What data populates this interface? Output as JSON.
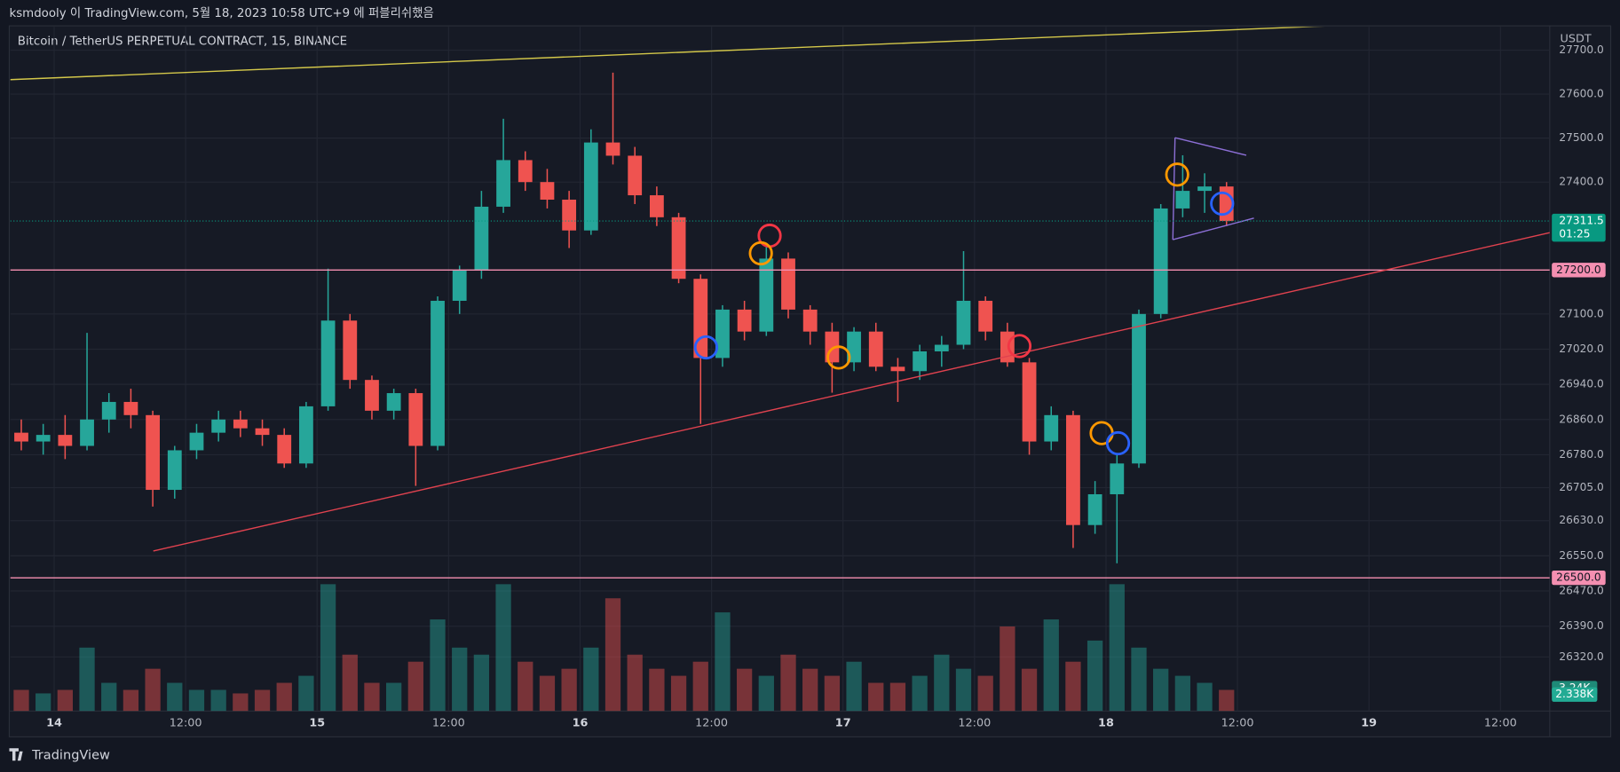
{
  "header": {
    "text": "ksmdooly 이 TradingView.com, 5월 18, 2023 10:58 UTC+9 에 퍼블리쉬했음"
  },
  "footer": {
    "brand": "TradingView"
  },
  "chart_data": {
    "type": "candlestick",
    "title": "Bitcoin / TetherUS PERPETUAL CONTRACT, 15, BINANCE",
    "currency": "USDT",
    "up_color": "#26a69a",
    "down_color": "#ef5350",
    "grid": true,
    "xlim": [
      -4,
      136.5
    ],
    "xticks": [
      {
        "value": 0,
        "label": "14"
      },
      {
        "value": 12,
        "label": "12:00"
      },
      {
        "value": 24,
        "label": "15"
      },
      {
        "value": 36,
        "label": "12:00"
      },
      {
        "value": 48,
        "label": "16"
      },
      {
        "value": 60,
        "label": "12:00"
      },
      {
        "value": 72,
        "label": "17"
      },
      {
        "value": 84,
        "label": "12:00"
      },
      {
        "value": 96,
        "label": "18"
      },
      {
        "value": 108,
        "label": "12:00"
      },
      {
        "value": 120,
        "label": "19"
      },
      {
        "value": 132,
        "label": "12:00"
      }
    ],
    "ylim": [
      26197,
      27753
    ],
    "yticks": [
      {
        "value": 27700,
        "label": "27700.0"
      },
      {
        "value": 27600,
        "label": "27600.0"
      },
      {
        "value": 27500,
        "label": "27500.0"
      },
      {
        "value": 27400,
        "label": "27400.0"
      },
      {
        "value": 27100,
        "label": "27100.0"
      },
      {
        "value": 27020,
        "label": "27020.0"
      },
      {
        "value": 26940,
        "label": "26940.0"
      },
      {
        "value": 26860,
        "label": "26860.0"
      },
      {
        "value": 26780,
        "label": "26780.0"
      },
      {
        "value": 26705,
        "label": "26705.0"
      },
      {
        "value": 26630,
        "label": "26630.0"
      },
      {
        "value": 26550,
        "label": "26550.0"
      },
      {
        "value": 26470,
        "label": "26470.0"
      },
      {
        "value": 26390,
        "label": "26390.0"
      },
      {
        "value": 26320,
        "label": "26320.0"
      }
    ],
    "x": [
      -4,
      -2,
      0,
      2,
      4,
      6,
      8,
      10,
      12,
      14,
      16,
      18,
      20,
      22,
      24,
      26,
      28,
      30,
      32,
      34,
      36,
      38,
      40,
      42,
      44,
      46,
      48,
      50,
      52,
      54,
      56,
      58,
      60,
      62,
      64,
      66,
      68,
      70,
      72,
      74,
      76,
      78,
      80,
      82,
      84,
      86,
      88,
      90,
      92,
      94,
      96,
      98,
      100,
      102,
      104,
      106
    ],
    "open": [
      26830,
      26810,
      26825,
      26800,
      26860,
      26900,
      26870,
      26700,
      26790,
      26830,
      26860,
      26840,
      26825,
      26760,
      26890,
      27085,
      26950,
      26880,
      26920,
      26800,
      27130,
      27200,
      27344,
      27450,
      27400,
      27360,
      27290,
      27490,
      27460,
      27370,
      27320,
      27180,
      27000,
      27110,
      27060,
      27226,
      27110,
      27060,
      26990,
      27060,
      26980,
      26970,
      27015,
      27030,
      27130,
      27060,
      26990,
      26810,
      26870,
      26620,
      26690,
      26760,
      27100,
      27340,
      27380,
      27390
    ],
    "high": [
      26860,
      26850,
      26870,
      27057,
      26920,
      26930,
      26880,
      26800,
      26850,
      26880,
      26880,
      26860,
      26840,
      26900,
      27203,
      27100,
      26960,
      26930,
      26930,
      27140,
      27210,
      27380,
      27544,
      27470,
      27430,
      27380,
      27520,
      27649,
      27480,
      27390,
      27330,
      27190,
      27120,
      27130,
      27262,
      27240,
      27120,
      27080,
      27070,
      27080,
      27000,
      27030,
      27050,
      27243,
      27140,
      27080,
      27000,
      26890,
      26880,
      26720,
      26780,
      27110,
      27350,
      27461,
      27420,
      27400
    ],
    "low": [
      26790,
      26780,
      26770,
      26790,
      26830,
      26840,
      26662,
      26680,
      26770,
      26810,
      26820,
      26800,
      26750,
      26750,
      26880,
      26930,
      26860,
      26860,
      26709,
      26790,
      27100,
      27180,
      27330,
      27380,
      27340,
      27250,
      27280,
      27440,
      27350,
      27300,
      27170,
      26850,
      26980,
      27040,
      27050,
      27090,
      27030,
      26921,
      26970,
      26970,
      26900,
      26950,
      26980,
      27020,
      27040,
      26980,
      26780,
      26790,
      26568,
      26600,
      26533,
      26750,
      27090,
      27320,
      27330,
      27300
    ],
    "close": [
      26810,
      26825,
      26800,
      26860,
      26900,
      26870,
      26700,
      26790,
      26830,
      26860,
      26840,
      26825,
      26760,
      26890,
      27085,
      26950,
      26880,
      26920,
      26800,
      27130,
      27200,
      27344,
      27450,
      27400,
      27360,
      27290,
      27490,
      27460,
      27370,
      27320,
      27180,
      27000,
      27110,
      27060,
      27226,
      27110,
      27060,
      26990,
      27060,
      26980,
      26970,
      27015,
      27030,
      27130,
      27060,
      26990,
      26810,
      26870,
      26620,
      26690,
      26760,
      27100,
      27340,
      27380,
      27390,
      27311.5
    ],
    "volume": [
      3,
      2.5,
      3,
      9,
      4,
      3,
      6,
      4,
      3,
      3,
      2.5,
      3,
      4,
      5,
      18,
      8,
      4,
      4,
      7,
      13,
      9,
      8,
      18,
      7,
      5,
      6,
      9,
      16,
      8,
      6,
      5,
      7,
      14,
      6,
      5,
      8,
      6,
      5,
      7,
      4,
      4,
      5,
      8,
      6,
      5,
      12,
      6,
      13,
      7,
      10,
      18,
      9,
      6,
      5,
      4,
      3
    ],
    "volume_lim": [
      0,
      22
    ],
    "volume_markers": [
      {
        "value": 3.24,
        "label": "3.24K"
      },
      {
        "value": 2.338,
        "label": "2.338K"
      }
    ],
    "last_price": {
      "value": 27311.5,
      "countdown": "01:25",
      "color": "#089981"
    },
    "levels": [
      {
        "value": 27200,
        "label": "27200.0",
        "color": "#f48fb1"
      },
      {
        "value": 26500,
        "label": "26500.0",
        "color": "#f48fb1"
      }
    ],
    "trendlines": [
      {
        "color": "#d4c84a",
        "points": [
          [
            -4,
            27633
          ],
          [
            116,
            27755
          ]
        ]
      },
      {
        "color": "#e0424f",
        "points": [
          [
            9.05,
            26561
          ],
          [
            136.5,
            27285
          ]
        ]
      },
      {
        "color": "#8c6fd6",
        "points": [
          [
            102.3,
            27501
          ],
          [
            108.8,
            27461
          ]
        ]
      },
      {
        "color": "#8c6fd6",
        "points": [
          [
            102.1,
            27269
          ],
          [
            109.5,
            27318
          ]
        ]
      },
      {
        "color": "#8c6fd6",
        "points": [
          [
            102.3,
            27501
          ],
          [
            102.1,
            27269
          ]
        ]
      }
    ],
    "markers": [
      {
        "color": "#f23645",
        "x": 65.3,
        "y": 27278
      },
      {
        "color": "#ff9800",
        "x": 64.5,
        "y": 27238
      },
      {
        "color": "#2962ff",
        "x": 59.5,
        "y": 27024
      },
      {
        "color": "#ff9800",
        "x": 71.6,
        "y": 27001
      },
      {
        "color": "#f23645",
        "x": 88.1,
        "y": 27027
      },
      {
        "color": "#ff9800",
        "x": 95.6,
        "y": 26829
      },
      {
        "color": "#2962ff",
        "x": 97.1,
        "y": 26806
      },
      {
        "color": "#ff9800",
        "x": 102.5,
        "y": 27417
      },
      {
        "color": "#2962ff",
        "x": 106.6,
        "y": 27351
      }
    ]
  }
}
